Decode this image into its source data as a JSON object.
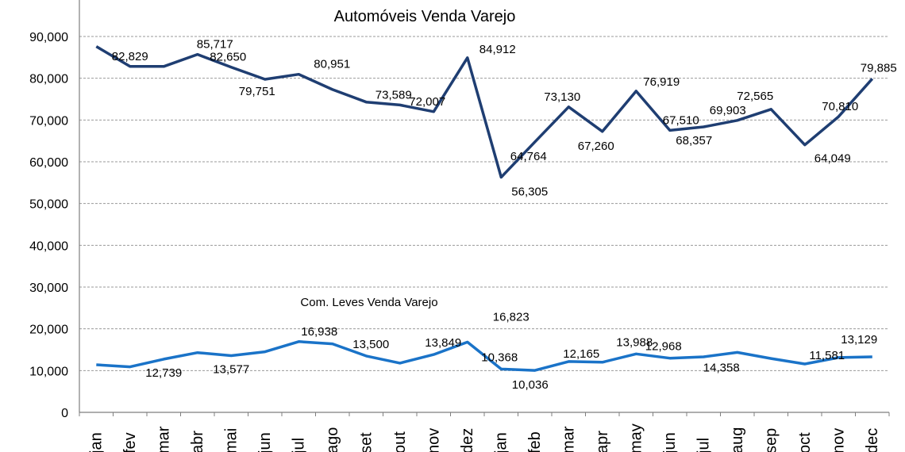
{
  "chart_data": {
    "type": "line",
    "categories": [
      "jan",
      "fev",
      "mar",
      "abr",
      "mai",
      "jun",
      "jul",
      "ago",
      "set",
      "out",
      "nov",
      "dez",
      "jan",
      "feb",
      "mar",
      "apr",
      "may",
      "jun",
      "jul",
      "aug",
      "sep",
      "oct",
      "nov",
      "dec"
    ],
    "ylim": [
      0,
      90000
    ],
    "yticks": [
      0,
      10000,
      20000,
      30000,
      40000,
      50000,
      60000,
      70000,
      80000,
      90000
    ],
    "ytick_labels": [
      "0",
      "10,000",
      "20,000",
      "30,000",
      "40,000",
      "50,000",
      "60,000",
      "70,000",
      "80,000",
      "90,000"
    ],
    "grid": true,
    "series": [
      {
        "name": "Automóveis Venda Varejo",
        "color": "#1f3e72",
        "values": [
          87600,
          82829,
          82829,
          85717,
          82650,
          79751,
          80951,
          77300,
          74300,
          73589,
          72007,
          84912,
          56305,
          64764,
          73130,
          67260,
          76919,
          67510,
          68357,
          69903,
          72565,
          64049,
          70810,
          79885
        ],
        "labels": [
          "",
          "82,829",
          "",
          "85,717",
          "82,650",
          "79,751",
          "80,951",
          "",
          "",
          "73,589",
          "72,007",
          "84,912",
          "56,305",
          "64,764",
          "73,130",
          "67,260",
          "76,919",
          "67,510",
          "68,357",
          "69,903",
          "72,565",
          "64,049",
          "70,810",
          "79,885"
        ]
      },
      {
        "name": "Com. Leves Venda Varejo",
        "color": "#1a73c8",
        "values": [
          11400,
          10900,
          12739,
          14300,
          13577,
          14500,
          16938,
          16400,
          13500,
          11800,
          13849,
          16823,
          10368,
          10036,
          12165,
          12000,
          13988,
          12968,
          13300,
          14358,
          12900,
          11581,
          13129,
          13300
        ],
        "labels": [
          "",
          "",
          "12,739",
          "",
          "13,577",
          "",
          "16,938",
          "",
          "13,500",
          "",
          "13,849",
          "16,823",
          "10,368",
          "10,036",
          "12,165",
          "",
          "13,988",
          "12,968",
          "",
          "14,358",
          "",
          "11,581",
          "13,129",
          ""
        ]
      }
    ]
  }
}
